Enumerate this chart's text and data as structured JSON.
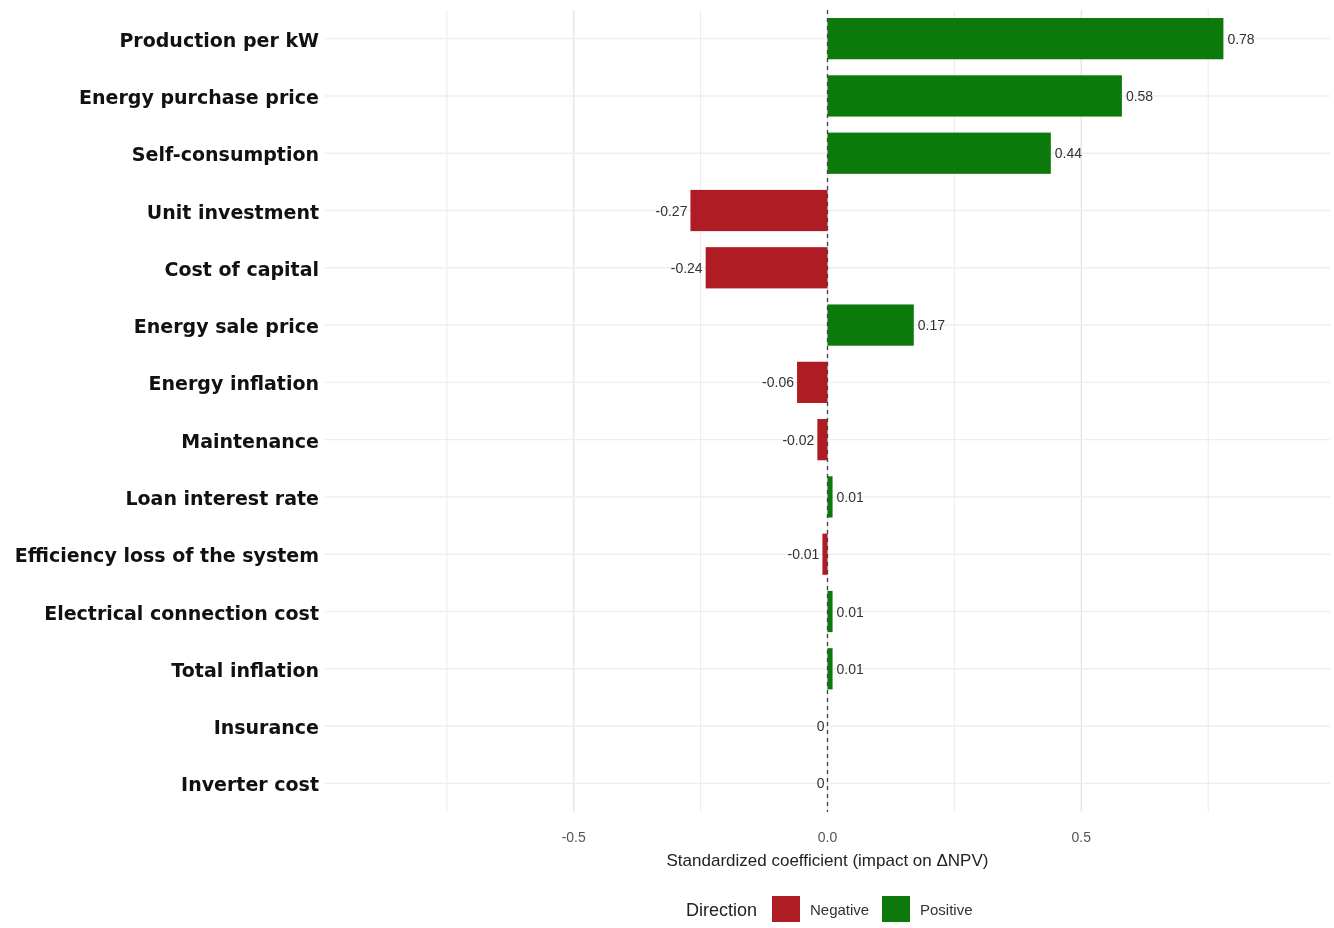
{
  "chart_data": {
    "type": "bar",
    "orientation": "horizontal",
    "categories": [
      "Production per kW",
      "Energy purchase price",
      "Self-consumption",
      "Unit investment",
      "Cost of capital",
      "Energy sale price",
      "Energy inflation",
      "Maintenance",
      "Loan interest rate",
      "Efficiency loss of the system",
      "Electrical connection cost",
      "Total inflation",
      "Insurance",
      "Inverter cost"
    ],
    "series": [
      {
        "name": "Negative",
        "color": "#b01c24",
        "values": [
          null,
          null,
          null,
          -0.27,
          -0.24,
          null,
          -0.06,
          -0.02,
          null,
          -0.01,
          null,
          null,
          0,
          0
        ]
      },
      {
        "name": "Positive",
        "color": "#0b7a0b",
        "values": [
          0.78,
          0.58,
          0.44,
          null,
          null,
          0.17,
          null,
          null,
          0.01,
          null,
          0.01,
          0.01,
          null,
          null
        ]
      }
    ],
    "data_labels": true,
    "xlabel": "Standardized coefficient (impact on ΔNPV)",
    "legend_title": "Direction",
    "legend": "bottom",
    "xlim": [
      -0.99,
      0.99
    ],
    "xticks": [
      {
        "value": -0.75,
        "label": null
      },
      -0.5,
      {
        "value": -0.25,
        "label": null
      },
      {
        "value": 0,
        "label": "0.0"
      },
      {
        "value": 0.25,
        "label": null
      },
      0.5,
      {
        "value": 0.75,
        "label": null
      }
    ],
    "grid": true,
    "ref_lines": [
      {
        "axis": "x",
        "value": 0,
        "color": "#444444",
        "line_style": "dashed"
      }
    ]
  }
}
